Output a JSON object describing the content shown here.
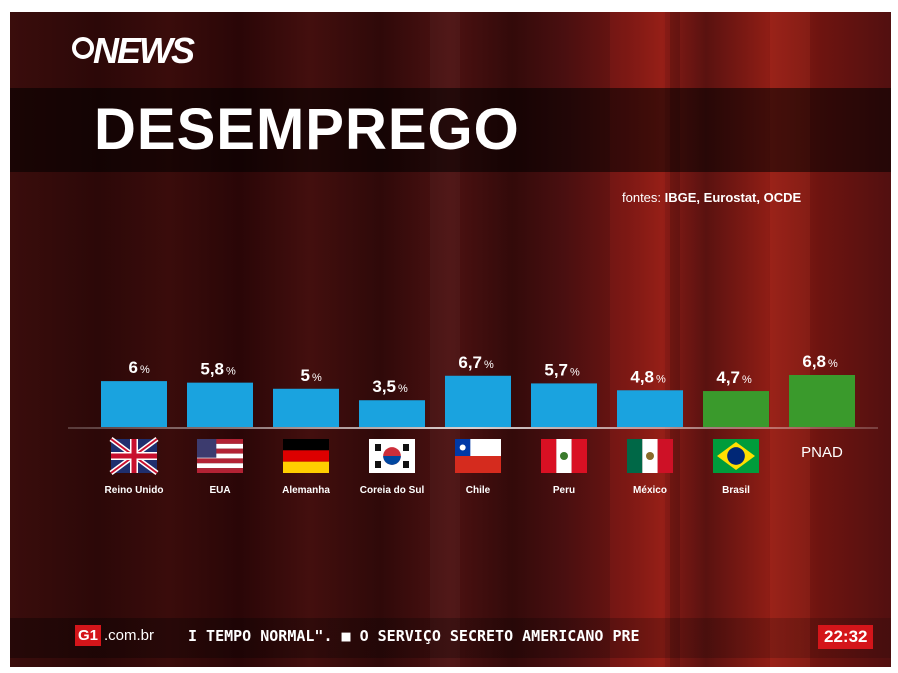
{
  "header": {
    "logo": "NEWS",
    "title": "DESEMPREGO"
  },
  "sources": {
    "prefix": "fontes: ",
    "names": "IBGE, Eurostat, OCDE"
  },
  "chart_data": {
    "type": "bar",
    "title": "DESEMPREGO",
    "categories": [
      "Reino Unido",
      "EUA",
      "Alemanha",
      "Coreia do Sul",
      "Chile",
      "Peru",
      "México",
      "Brasil",
      "PNAD"
    ],
    "values": [
      6,
      5.8,
      5,
      3.5,
      6.7,
      5.7,
      4.8,
      4.7,
      6.8
    ],
    "value_labels": [
      "6",
      "5,8",
      "5",
      "3,5",
      "6,7",
      "5,7",
      "4,8",
      "4,7",
      "6,8"
    ],
    "unit": "%",
    "colors": [
      "#1aa3df",
      "#1aa3df",
      "#1aa3df",
      "#1aa3df",
      "#1aa3df",
      "#1aa3df",
      "#1aa3df",
      "#3a9a2c",
      "#3a9a2c"
    ],
    "flags": [
      "uk-flag",
      "usa-flag",
      "germany-flag",
      "south-korea-flag",
      "chile-flag",
      "peru-flag",
      "mexico-flag",
      "brazil-flag",
      ""
    ],
    "xlabel": "",
    "ylabel": "",
    "ylim": [
      0,
      6.8
    ],
    "grid": false,
    "legend": "none"
  },
  "ticker": {
    "brand": "G1",
    "domain": ".com.br",
    "text": "I TEMPO NORMAL\". ■ O SERVIÇO SECRETO AMERICANO PRE",
    "time": "22:32"
  },
  "colors": {
    "accent_red": "#d4151a",
    "bar_blue": "#1aa3df",
    "bar_green": "#3a9a2c"
  }
}
